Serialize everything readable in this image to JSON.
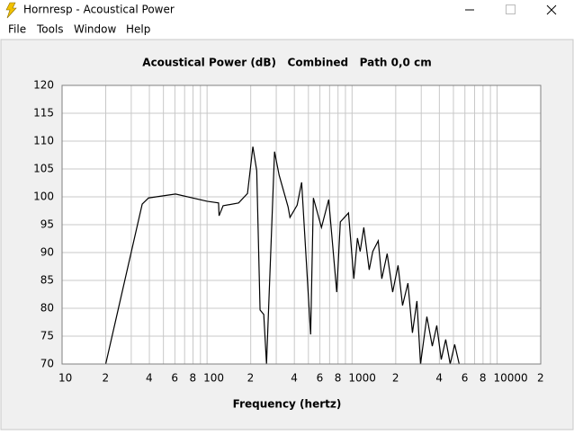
{
  "window": {
    "title": "Hornresp - Acoustical Power"
  },
  "menu": [
    "File",
    "Tools",
    "Window",
    "Help"
  ],
  "chart_data": {
    "type": "line",
    "title": "Acoustical Power (dB)   Combined   Path 0,0 cm",
    "x_label": "Frequency (hertz)",
    "xscale": "log",
    "xlim": [
      10,
      20000
    ],
    "ylim": [
      70,
      120
    ],
    "xticks": [
      10,
      {
        "value": 20,
        "label": "2"
      },
      {
        "value": 40,
        "label": "4"
      },
      {
        "value": 60,
        "label": "6"
      },
      {
        "value": 80,
        "label": "8"
      },
      100,
      {
        "value": 200,
        "label": "2"
      },
      {
        "value": 400,
        "label": "4"
      },
      {
        "value": 600,
        "label": "6"
      },
      {
        "value": 800,
        "label": "8"
      },
      1000,
      {
        "value": 2000,
        "label": "2"
      },
      {
        "value": 4000,
        "label": "4"
      },
      {
        "value": 6000,
        "label": "6"
      },
      {
        "value": 8000,
        "label": "8"
      },
      10000,
      {
        "value": 20000,
        "label": "2"
      }
    ],
    "x_minor_grid": [
      30,
      50,
      70,
      90,
      300,
      500,
      700,
      900,
      3000,
      5000,
      7000,
      9000
    ],
    "yticks": [
      70,
      75,
      80,
      85,
      90,
      95,
      100,
      105,
      110,
      115,
      120
    ],
    "grid": true,
    "color": "#000000",
    "x": [
      20,
      35.7,
      39.5,
      60.6,
      100,
      120,
      121,
      129,
      165,
      190,
      207,
      220,
      232,
      246,
      257,
      292,
      314,
      362,
      373,
      418,
      449,
      518,
      541,
      615,
      690,
      784,
      830,
      945,
      1028,
      1089,
      1137,
      1205,
      1313,
      1390,
      1515,
      1604,
      1746,
      1905,
      2076,
      2229,
      2428,
      2608,
      2801,
      2966,
      3280,
      3575,
      3838,
      4121,
      4425,
      4751,
      5102,
      5478
    ],
    "values": [
      70,
      98.7,
      99.8,
      100.5,
      99.2,
      98.9,
      96.6,
      98.4,
      98.9,
      100.6,
      109.0,
      104.7,
      79.7,
      78.9,
      70,
      108.1,
      103.9,
      98.2,
      96.3,
      98.5,
      102.6,
      75.3,
      99.8,
      94.5,
      99.5,
      82.9,
      95.5,
      97.1,
      85.3,
      92.6,
      90.2,
      94.5,
      86.9,
      90.2,
      92.1,
      85.3,
      89.8,
      82.9,
      87.7,
      80.5,
      84.5,
      75.6,
      81.3,
      70,
      78.5,
      73.2,
      76.9,
      70.8,
      74.4,
      70,
      73.5,
      70
    ]
  }
}
